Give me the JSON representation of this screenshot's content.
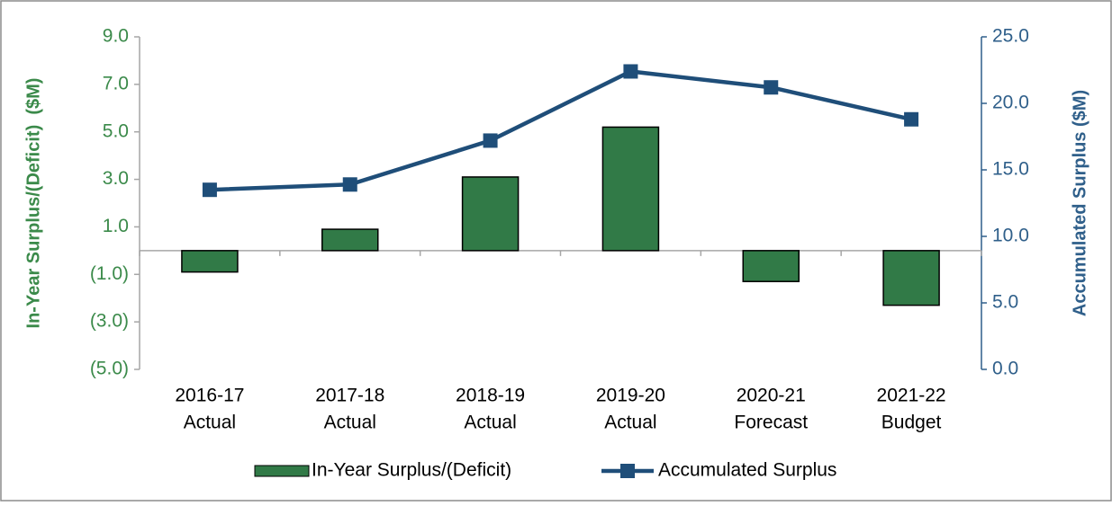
{
  "chart_data": {
    "type": "bar",
    "categories": [
      [
        "2016-17",
        "Actual"
      ],
      [
        "2017-18",
        "Actual"
      ],
      [
        "2018-19",
        "Actual"
      ],
      [
        "2019-20",
        "Actual"
      ],
      [
        "2020-21",
        "Forecast"
      ],
      [
        "2021-22",
        "Budget"
      ]
    ],
    "ylabel": "In-Year Surplus/(Deficit)  ($M)",
    "y2label": "Accumulated Surplus ($M)",
    "ylim": [
      -5,
      9
    ],
    "yticks": [
      {
        "value": -5,
        "label": "(5.0)"
      },
      {
        "value": -3,
        "label": "(3.0)"
      },
      {
        "value": -1,
        "label": "(1.0)"
      },
      {
        "value": 1,
        "label": "1.0"
      },
      {
        "value": 3,
        "label": "3.0"
      },
      {
        "value": 5,
        "label": "5.0"
      },
      {
        "value": 7,
        "label": "7.0"
      },
      {
        "value": 9,
        "label": "9.0"
      }
    ],
    "y2lim": [
      0,
      25
    ],
    "y2ticks": [
      {
        "value": 0,
        "label": "0.0"
      },
      {
        "value": 5,
        "label": "5.0"
      },
      {
        "value": 10,
        "label": "10.0"
      },
      {
        "value": 15,
        "label": "15.0"
      },
      {
        "value": 20,
        "label": "20.0"
      },
      {
        "value": 25,
        "label": "25.0"
      }
    ],
    "series": [
      {
        "name": "In-Year Surplus/(Deficit)",
        "type": "bar",
        "color": "#317a47",
        "values": [
          -0.9,
          0.9,
          3.1,
          5.2,
          -1.3,
          -2.3
        ]
      },
      {
        "name": "Accumulated Surplus",
        "type": "line",
        "axis": "y2",
        "color": "#1f4e79",
        "values": [
          13.5,
          13.9,
          17.2,
          22.4,
          21.2,
          18.8
        ]
      }
    ],
    "legend": "bottom"
  }
}
